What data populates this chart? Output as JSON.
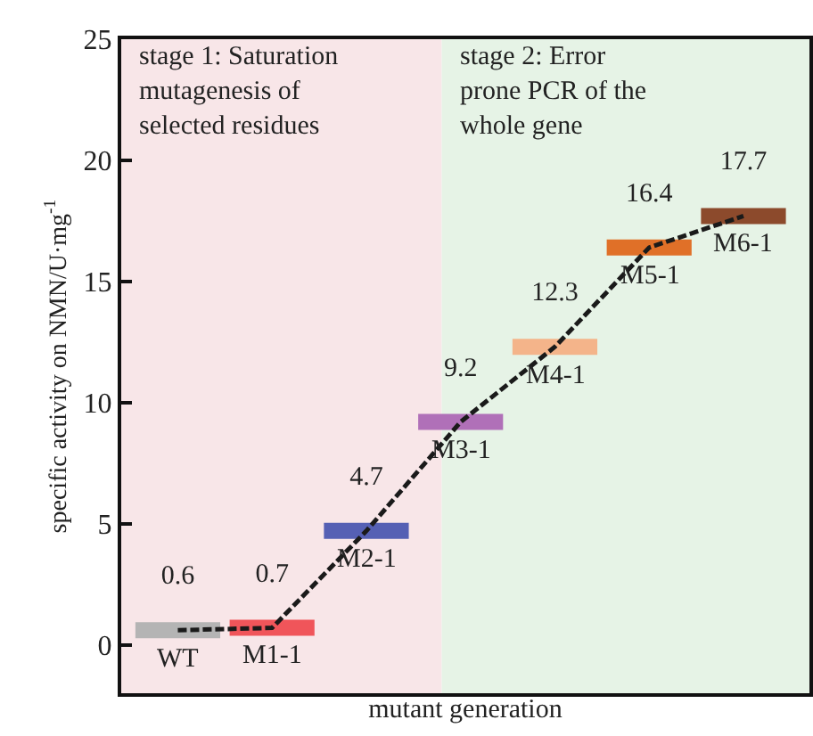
{
  "chart_data": {
    "type": "line",
    "color": "#1a1a1a",
    "xlabel": "mutant generation",
    "ylabel": "specific activity on NMN/U·mg$^{-1}$",
    "categories": [
      null,
      null,
      null,
      null,
      null,
      null,
      null
    ],
    "values": [
      0.6,
      0.7,
      4.7,
      9.2,
      12.3,
      16.4,
      17.7
    ],
    "colors": [
      "#b4b4b4",
      "#f0555a",
      "#5560b4",
      "#b070b8",
      "#f4b48a",
      "#e07028",
      "#8c4a2c"
    ],
    "data_labels": true,
    "line_style": "dashed",
    "ylim": [
      -2,
      25
    ],
    "yticks": [
      0,
      5,
      10,
      15,
      20,
      25
    ],
    "tick_labels": "y",
    "grid": false,
    "annotations": [
      "stage 1: Saturation mutagenesis of selected residues",
      "stage 2: Error prone PCR of the whole gene",
      {
        "text": "WT",
        "y": 0.6
      },
      {
        "text": "M1-1",
        "y": 0.7
      },
      {
        "text": "M2-1",
        "y": 4.7
      },
      {
        "text": "M3-1",
        "y": 9.2
      },
      {
        "text": "M4-1",
        "y": 12.3
      },
      {
        "text": "M5-1",
        "y": 16.4
      },
      {
        "text": "M6-1",
        "y": 17.7
      }
    ]
  }
}
